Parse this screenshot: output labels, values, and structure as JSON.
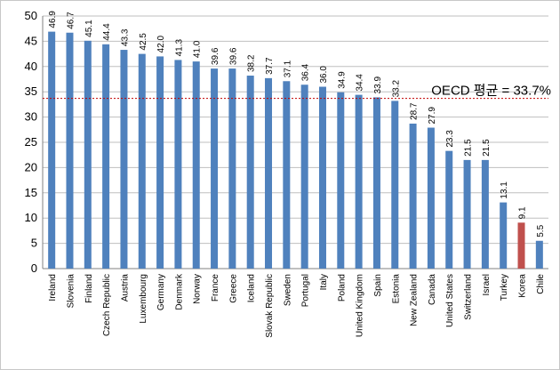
{
  "chart_data": {
    "type": "bar",
    "categories": [
      "Ireland",
      "Slovenia",
      "Finland",
      "Czech Republic",
      "Austria",
      "Luxembourg",
      "Germany",
      "Denmark",
      "Norway",
      "France",
      "Greece",
      "Iceland",
      "Slovak Republic",
      "Sweden",
      "Portugal",
      "Italy",
      "Poland",
      "United Kingdom",
      "Spain",
      "Estonia",
      "New Zealand",
      "Canada",
      "United States",
      "Switzerland",
      "Israel",
      "Turkey",
      "Korea",
      "Chile"
    ],
    "values": [
      46.9,
      46.7,
      45.1,
      44.4,
      43.3,
      42.5,
      42.0,
      41.3,
      41.0,
      39.6,
      39.6,
      38.2,
      37.7,
      37.1,
      36.4,
      36.0,
      34.9,
      34.4,
      33.9,
      33.2,
      28.7,
      27.9,
      23.3,
      21.5,
      21.5,
      13.1,
      9.1,
      5.5
    ],
    "value_labels": [
      "46.9",
      "46.7",
      "45.1",
      "44.4",
      "43.3",
      "42.5",
      "42.0",
      "41.3",
      "41.0",
      "39.6",
      "39.6",
      "38.2",
      "37.7",
      "37.1",
      "36.4",
      "36.0",
      "34.9",
      "34.4",
      "33.9",
      "33.2",
      "28.7",
      "27.9",
      "23.3",
      "21.5",
      "21.5",
      "13.1",
      "9.1",
      "5.5"
    ],
    "ylim": [
      0,
      50
    ],
    "yticks": [
      0,
      5,
      10,
      15,
      20,
      25,
      30,
      35,
      40,
      45,
      50
    ],
    "grid": true,
    "bar_color": "#4f81bd",
    "highlight_color": "#c0504d",
    "highlight_category": "Korea",
    "reference_line": {
      "value": 33.7,
      "label": "OECD 평균 = 33.7%",
      "color": "#c00000"
    }
  }
}
